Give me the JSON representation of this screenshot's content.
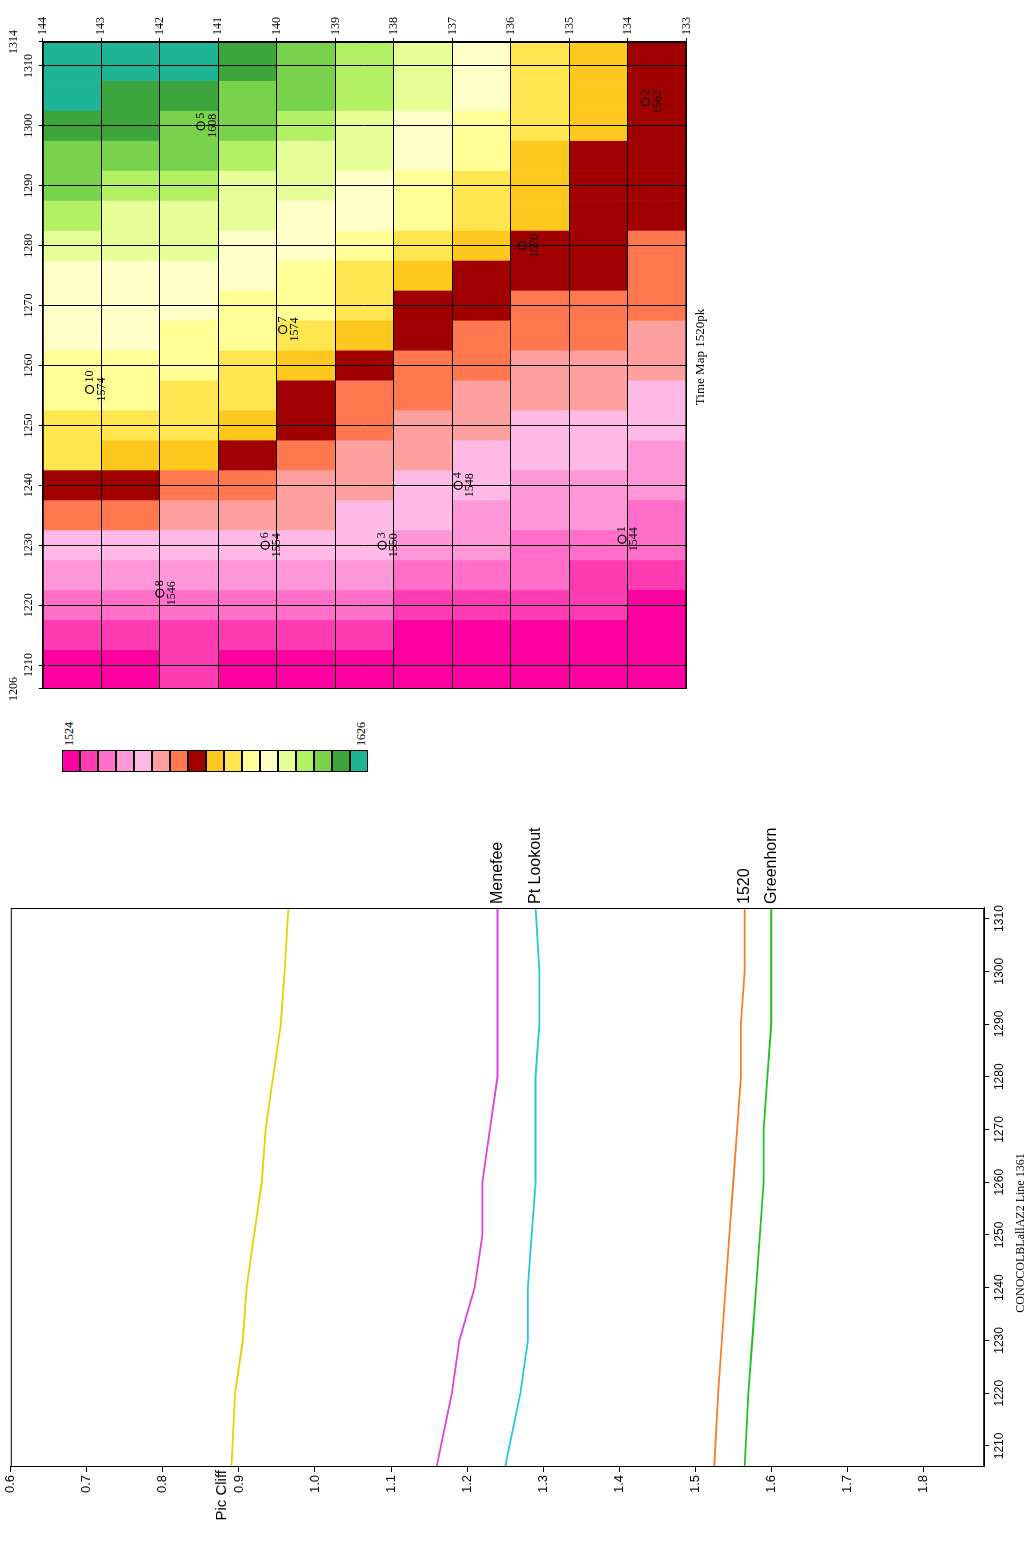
{
  "chart_data": [
    {
      "type": "line",
      "title": "CONOCOLBLallAZ2 Line 1361",
      "x": [
        1206,
        1220,
        1230,
        1240,
        1250,
        1260,
        1270,
        1280,
        1290,
        1300,
        1312
      ],
      "series": [
        {
          "name": "Pic Cliff",
          "color": "#e6d200",
          "values": [
            0.89,
            0.895,
            0.905,
            0.91,
            0.92,
            0.93,
            0.935,
            0.945,
            0.955,
            0.96,
            0.965
          ]
        },
        {
          "name": "Menefee",
          "color": "#e040e0",
          "values": [
            1.16,
            1.18,
            1.19,
            1.21,
            1.22,
            1.22,
            1.23,
            1.24,
            1.24,
            1.24,
            1.24
          ]
        },
        {
          "name": "Pt Lookout",
          "color": "#20c8e0",
          "values": [
            1.25,
            1.27,
            1.28,
            1.28,
            1.285,
            1.29,
            1.29,
            1.29,
            1.295,
            1.295,
            1.29
          ]
        },
        {
          "name": "1520",
          "color": "#f08030",
          "values": [
            1.525,
            1.53,
            1.535,
            1.54,
            1.545,
            1.55,
            1.555,
            1.56,
            1.56,
            1.565,
            1.565
          ]
        },
        {
          "name": "Greenhorn",
          "color": "#20c020",
          "values": [
            1.565,
            1.57,
            1.575,
            1.58,
            1.585,
            1.59,
            1.59,
            1.595,
            1.6,
            1.6,
            1.6
          ]
        }
      ],
      "xlim": [
        1206,
        1312
      ],
      "xticks": [
        1210,
        1220,
        1230,
        1240,
        1250,
        1260,
        1270,
        1280,
        1290,
        1300,
        1310
      ],
      "ylim": [
        1.88,
        0.6
      ],
      "yticks": [
        0.6,
        0.7,
        0.8,
        0.9,
        {
          "value": 1,
          "label": "1.0"
        },
        1.1,
        1.2,
        1.3,
        1.4,
        1.5,
        1.6,
        1.7,
        1.8
      ],
      "grid": false
    },
    {
      "type": "heatmap",
      "title": "Time Map 1520pk",
      "x": [
        1210,
        1215,
        1220,
        1225,
        1230,
        1235,
        1240,
        1245,
        1250,
        1255,
        1260,
        1265,
        1270,
        1275,
        1280,
        1285,
        1290,
        1295,
        1300,
        1305,
        1310
      ],
      "y": [
        143.5,
        142.5,
        141.5,
        140.5,
        139.5,
        138.5,
        137.5,
        136.5,
        135.5,
        134.5,
        133.5
      ],
      "cells": [
        [
          1528,
          1532,
          1538,
          1545,
          1552,
          1560,
          1570,
          1578,
          1582,
          1585,
          1588,
          1590,
          1592,
          1595,
          1598,
          1602,
          1608,
          1612,
          1616,
          1620,
          1624
        ],
        [
          1528,
          1532,
          1538,
          1545,
          1552,
          1560,
          1568,
          1574,
          1580,
          1584,
          1587,
          1590,
          1592,
          1594,
          1597,
          1600,
          1605,
          1610,
          1614,
          1618,
          1622
        ],
        [
          1530,
          1534,
          1540,
          1546,
          1552,
          1558,
          1565,
          1572,
          1578,
          1582,
          1585,
          1588,
          1591,
          1594,
          1596,
          1599,
          1603,
          1608,
          1612,
          1616,
          1620
        ],
        [
          1528,
          1533,
          1540,
          1546,
          1552,
          1557,
          1562,
          1566,
          1572,
          1578,
          1582,
          1585,
          1589,
          1592,
          1595,
          1598,
          1601,
          1605,
          1608,
          1612,
          1616
        ],
        [
          1527,
          1532,
          1538,
          1545,
          1550,
          1555,
          1558,
          1562,
          1566,
          1571,
          1576,
          1580,
          1584,
          1588,
          1592,
          1595,
          1598,
          1601,
          1604,
          1608,
          1612
        ],
        [
          1526,
          1530,
          1536,
          1542,
          1548,
          1552,
          1556,
          1559,
          1562,
          1565,
          1569,
          1573,
          1578,
          1582,
          1586,
          1590,
          1594,
          1597,
          1600,
          1603,
          1606
        ],
        [
          1525,
          1529,
          1534,
          1540,
          1546,
          1549,
          1552,
          1555,
          1558,
          1561,
          1564,
          1567,
          1571,
          1576,
          1580,
          1584,
          1588,
          1591,
          1594,
          1596,
          1598
        ],
        [
          1525,
          1528,
          1532,
          1538,
          1543,
          1546,
          1549,
          1552,
          1555,
          1558,
          1561,
          1564,
          1567,
          1570,
          1574,
          1578,
          1582,
          1585,
          1588,
          1590,
          1592
        ],
        [
          1524,
          1527,
          1531,
          1536,
          1541,
          1544,
          1547,
          1550,
          1553,
          1556,
          1559,
          1562,
          1565,
          1568,
          1570,
          1572,
          1574,
          1576,
          1578,
          1580,
          1582
        ],
        [
          1524,
          1526,
          1530,
          1534,
          1539,
          1542,
          1545,
          1548,
          1551,
          1554,
          1557,
          1560,
          1563,
          1566,
          1568,
          1570,
          1571,
          1571,
          1572,
          1572,
          1573
        ],
        [
          1524,
          1526,
          1529,
          1533,
          1538,
          1541,
          1544,
          1547,
          1550,
          1553,
          1556,
          1558,
          1561,
          1563,
          1565,
          1567,
          1569,
          1570,
          1570,
          1570,
          1571
        ]
      ],
      "xlim": [
        1206,
        1314
      ],
      "xticks": [
        1206,
        1210,
        1220,
        1230,
        1240,
        1250,
        1260,
        1270,
        1280,
        1290,
        1300,
        1310,
        1314
      ],
      "ylim": [
        133,
        144
      ],
      "yticks": [
        133,
        134,
        135,
        136,
        137,
        138,
        139,
        140,
        141,
        142,
        143,
        144
      ],
      "grid": true,
      "colorbar": {
        "range": [
          1524,
          1626
        ],
        "ticks": [
          1524,
          1626
        ],
        "colors": [
          "#ff00a0",
          "#ff3cb4",
          "#ff6ec8",
          "#ff96d7",
          "#ffb9e6",
          "#ffa0a0",
          "#ff7850",
          "#a00000",
          "#ffc81e",
          "#ffe650",
          "#ffff96",
          "#ffffc8",
          "#e6ff96",
          "#b4f064",
          "#78d24b",
          "#3ca53c",
          "#1eb496"
        ]
      },
      "wells": [
        {
          "name": "10",
          "x": 1256,
          "y": 143.2,
          "value": 1574
        },
        {
          "name": "8",
          "x": 1222,
          "y": 142,
          "value": 1546
        },
        {
          "name": "6",
          "x": 1230,
          "y": 140.2,
          "value": 1554
        },
        {
          "name": "3",
          "x": 1230,
          "y": 138.2,
          "value": 1550
        },
        {
          "name": "4",
          "x": 1240,
          "y": 136.9,
          "value": 1548
        },
        {
          "name": "1",
          "x": 1231,
          "y": 134.1,
          "value": 1544
        },
        {
          "name": "7",
          "x": 1266,
          "y": 139.9,
          "value": 1574
        },
        {
          "name": "5",
          "x": 1300,
          "y": 141.3,
          "value": 1608
        },
        {
          "name": null,
          "x": 1280,
          "y": 135.8,
          "value": 1570
        },
        {
          "name": "2",
          "x": 1304,
          "y": 133.7,
          "value": 1562
        }
      ]
    }
  ]
}
